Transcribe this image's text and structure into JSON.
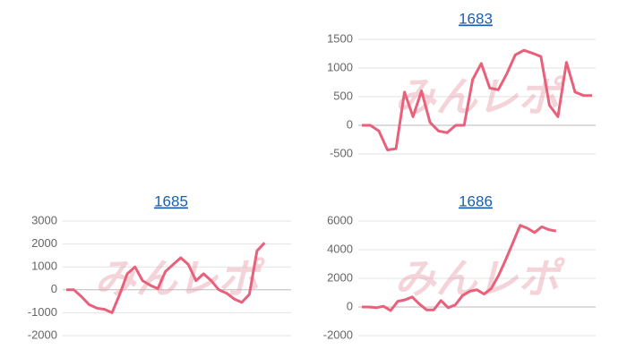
{
  "chart_data": [
    {
      "type": "line",
      "title": "1683",
      "watermark": "みんレポ",
      "color": "#e8607a",
      "grid": true,
      "ylim": [
        -500,
        1500
      ],
      "yticks": [
        -500,
        0,
        500,
        1000,
        1500
      ],
      "values": [
        0,
        0,
        -100,
        -430,
        -410,
        580,
        150,
        600,
        50,
        -100,
        -130,
        0,
        0,
        800,
        1080,
        650,
        620,
        900,
        1230,
        1310,
        1260,
        1200,
        350,
        150,
        1100,
        580,
        520,
        520
      ]
    },
    {
      "type": "line",
      "title": "1685",
      "watermark": "みんレポ",
      "color": "#e8607a",
      "grid": true,
      "ylim": [
        -2000,
        3000
      ],
      "yticks": [
        -2000,
        -1000,
        0,
        1000,
        2000,
        3000
      ],
      "values": [
        0,
        0,
        -300,
        -650,
        -800,
        -850,
        -1000,
        -200,
        700,
        1000,
        400,
        200,
        50,
        800,
        1100,
        1400,
        1100,
        400,
        700,
        400,
        0,
        -150,
        -400,
        -550,
        -200,
        1700,
        2050,
        null,
        null,
        null
      ]
    },
    {
      "type": "line",
      "title": "1686",
      "watermark": "みんレポ",
      "color": "#e8607a",
      "grid": true,
      "ylim": [
        -2000,
        6000
      ],
      "yticks": [
        -2000,
        0,
        2000,
        4000,
        6000
      ],
      "values": [
        0,
        0,
        -50,
        50,
        -250,
        400,
        500,
        700,
        200,
        -200,
        -200,
        450,
        -50,
        150,
        800,
        1100,
        1200,
        900,
        1300,
        2200,
        3300,
        4500,
        5700,
        5500,
        5200,
        5600,
        5400,
        5300,
        null,
        null,
        null,
        null,
        null
      ]
    }
  ]
}
